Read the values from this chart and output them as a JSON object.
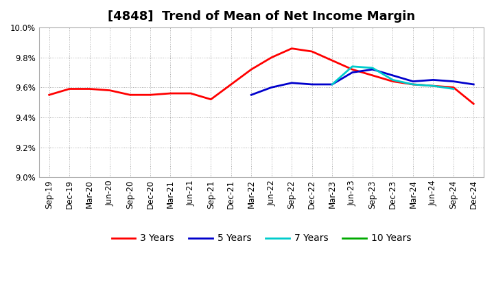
{
  "title": "[4848]  Trend of Mean of Net Income Margin",
  "x_labels": [
    "Sep-19",
    "Dec-19",
    "Mar-20",
    "Jun-20",
    "Sep-20",
    "Dec-20",
    "Mar-21",
    "Jun-21",
    "Sep-21",
    "Dec-21",
    "Mar-22",
    "Jun-22",
    "Sep-22",
    "Dec-22",
    "Mar-23",
    "Jun-23",
    "Sep-23",
    "Dec-23",
    "Mar-24",
    "Jun-24",
    "Sep-24",
    "Dec-24"
  ],
  "ylim": [
    9.0,
    10.0
  ],
  "yticks": [
    9.0,
    9.2,
    9.4,
    9.6,
    9.8,
    10.0
  ],
  "series": {
    "3 Years": {
      "color": "#ff0000",
      "linewidth": 2.0,
      "values": [
        9.55,
        9.59,
        9.59,
        9.58,
        9.55,
        9.55,
        9.56,
        9.56,
        9.52,
        9.62,
        9.72,
        9.8,
        9.86,
        9.84,
        9.78,
        9.72,
        9.68,
        9.64,
        9.62,
        9.61,
        9.6,
        9.49
      ]
    },
    "5 Years": {
      "color": "#0000cc",
      "linewidth": 2.0,
      "values": [
        null,
        null,
        null,
        null,
        null,
        null,
        null,
        null,
        null,
        null,
        9.55,
        9.6,
        9.63,
        9.62,
        9.62,
        9.7,
        9.72,
        9.68,
        9.64,
        9.65,
        9.64,
        9.62
      ]
    },
    "7 Years": {
      "color": "#00cccc",
      "linewidth": 2.0,
      "values": [
        null,
        null,
        null,
        null,
        null,
        null,
        null,
        null,
        null,
        null,
        null,
        null,
        null,
        null,
        9.62,
        9.74,
        9.73,
        9.65,
        9.62,
        9.61,
        9.59,
        null
      ]
    },
    "10 Years": {
      "color": "#00aa00",
      "linewidth": 2.0,
      "values": [
        null,
        null,
        null,
        null,
        null,
        null,
        null,
        null,
        null,
        null,
        null,
        null,
        null,
        null,
        null,
        null,
        null,
        null,
        null,
        null,
        null,
        null
      ]
    }
  },
  "legend_order": [
    "3 Years",
    "5 Years",
    "7 Years",
    "10 Years"
  ],
  "background_color": "#ffffff",
  "grid_color": "#aaaaaa",
  "title_fontsize": 13,
  "tick_fontsize": 8.5,
  "legend_fontsize": 10
}
